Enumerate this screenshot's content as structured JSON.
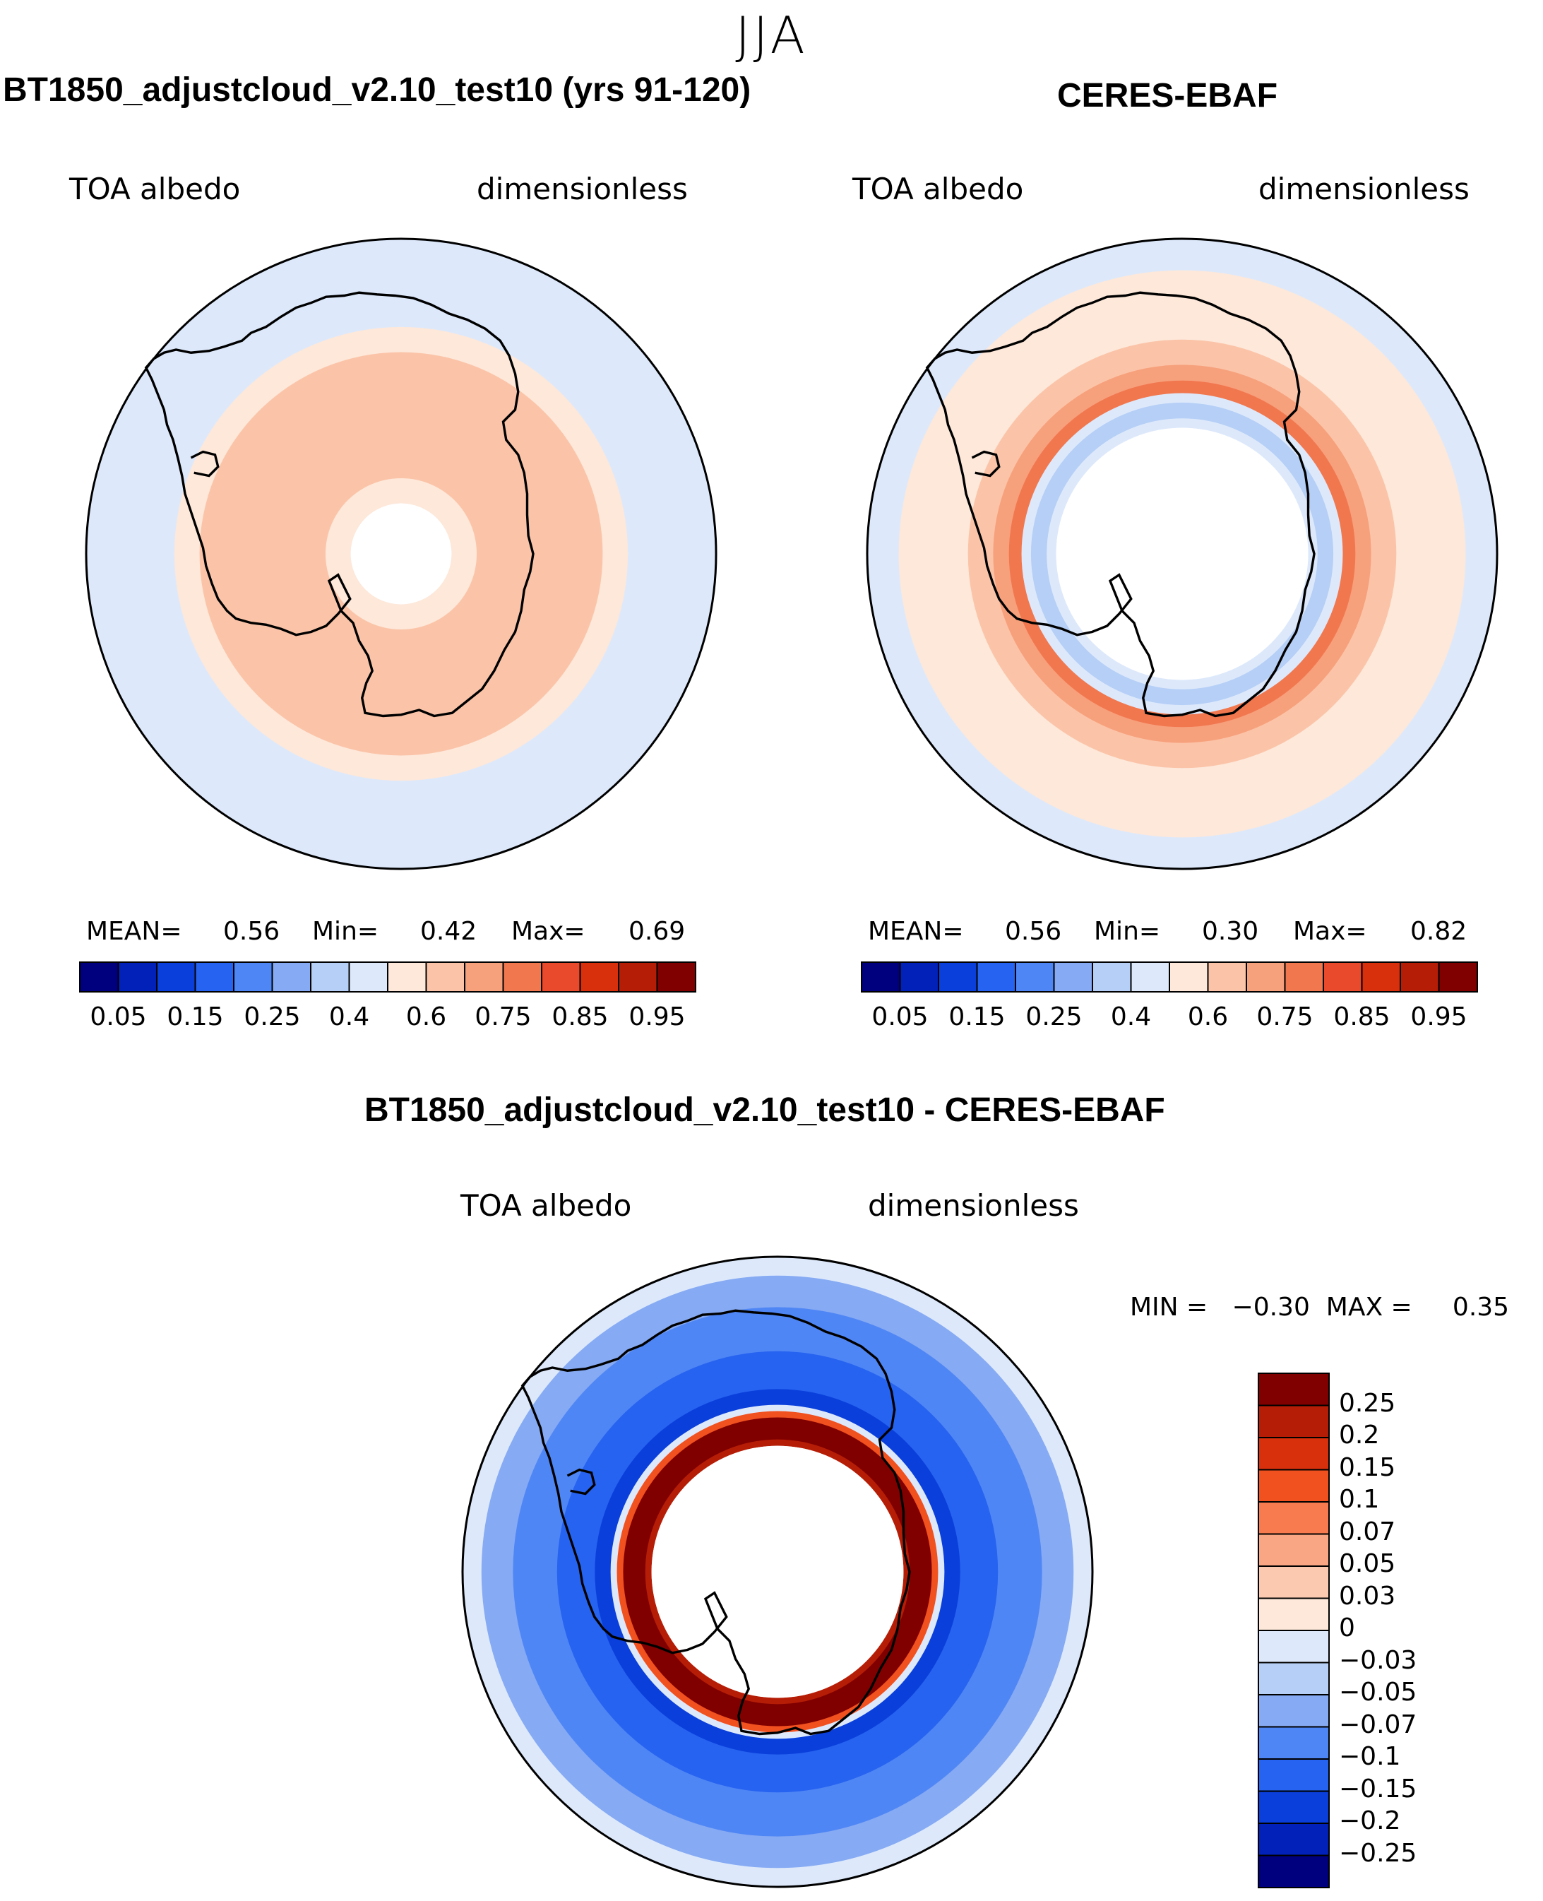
{
  "season": "JJA",
  "panels": {
    "model": {
      "title": "BT1850_adjustcloud_v2.10_test10 (yrs 91-120)",
      "variable": "TOA albedo",
      "units": "dimensionless",
      "stats": {
        "mean_label": "MEAN=",
        "mean": "0.56",
        "min_label": "Min=",
        "min": "0.42",
        "max_label": "Max=",
        "max": "0.69"
      }
    },
    "obs": {
      "title": "CERES-EBAF",
      "variable": "TOA albedo",
      "units": "dimensionless",
      "stats": {
        "mean_label": "MEAN=",
        "mean": "0.56",
        "min_label": "Min=",
        "min": "0.30",
        "max_label": "Max=",
        "max": "0.82"
      }
    },
    "diff": {
      "title": "BT1850_adjustcloud_v2.10_test10 - CERES-EBAF",
      "variable": "TOA albedo",
      "units": "dimensionless",
      "range_text": "MIN =   −0.30  MAX =     0.35"
    }
  },
  "colorbars": {
    "field": {
      "colors": [
        "#00007e",
        "#0121b8",
        "#0a3fdb",
        "#2663f0",
        "#4f86f5",
        "#86aaf3",
        "#b6cff6",
        "#dde9fb",
        "#fde8da",
        "#fbc4a8",
        "#f7a07c",
        "#f1774f",
        "#e84a2b",
        "#d8300d",
        "#b51d06",
        "#800000"
      ],
      "tick_labels": [
        "0.05",
        "0.15",
        "0.25",
        "0.4",
        "0.6",
        "0.75",
        "0.85",
        "0.95"
      ]
    },
    "diff": {
      "colors": [
        "#800000",
        "#b51d06",
        "#d8300d",
        "#f1501f",
        "#f77b4f",
        "#f9a684",
        "#fbc9b0",
        "#fde8da",
        "#dde9fb",
        "#b6cff6",
        "#86aaf3",
        "#4f86f5",
        "#2663f0",
        "#0a3fdb",
        "#0121b8",
        "#00007e"
      ],
      "tick_labels": [
        "0.25",
        "0.2",
        "0.15",
        "0.1",
        "0.07",
        "0.05",
        "0.03",
        "0",
        "−0.03",
        "−0.05",
        "−0.07",
        "−0.1",
        "−0.15",
        "−0.2",
        "−0.25"
      ]
    }
  },
  "chart_data": [
    {
      "type": "heatmap",
      "title": "BT1850_adjustcloud_v2.10_test10 (yrs 91-120)",
      "projection": "south polar stereographic",
      "variable": "TOA albedo",
      "units": "dimensionless",
      "mean": 0.56,
      "min": 0.42,
      "max": 0.69,
      "levels": [
        0.05,
        0.1,
        0.15,
        0.2,
        0.25,
        0.3,
        0.4,
        0.5,
        0.6,
        0.7,
        0.75,
        0.8,
        0.85,
        0.9,
        0.95
      ],
      "rings": [
        {
          "from_lat": -90,
          "to_lat": -82,
          "value": null
        },
        {
          "from_lat": -82,
          "to_lat": -78,
          "value": 0.55
        },
        {
          "from_lat": -78,
          "to_lat": -58,
          "value": 0.63
        },
        {
          "from_lat": -58,
          "to_lat": -54,
          "value": 0.56
        },
        {
          "from_lat": -54,
          "to_lat": -40,
          "value": 0.45
        }
      ]
    },
    {
      "type": "heatmap",
      "title": "CERES-EBAF",
      "projection": "south polar stereographic",
      "variable": "TOA albedo",
      "units": "dimensionless",
      "mean": 0.56,
      "min": 0.3,
      "max": 0.82,
      "levels": [
        0.05,
        0.1,
        0.15,
        0.2,
        0.25,
        0.3,
        0.4,
        0.5,
        0.6,
        0.7,
        0.75,
        0.8,
        0.85,
        0.9,
        0.95
      ],
      "rings": [
        {
          "from_lat": -90,
          "to_lat": -70,
          "value": null
        },
        {
          "from_lat": -70,
          "to_lat": -68.5,
          "value": 0.45
        },
        {
          "from_lat": -68.5,
          "to_lat": -66,
          "value": 0.35
        },
        {
          "from_lat": -66,
          "to_lat": -64.5,
          "value": 0.45
        },
        {
          "from_lat": -64.5,
          "to_lat": -62.5,
          "value": 0.78
        },
        {
          "from_lat": -62.5,
          "to_lat": -60,
          "value": 0.72
        },
        {
          "from_lat": -60,
          "to_lat": -56,
          "value": 0.65
        },
        {
          "from_lat": -56,
          "to_lat": -45,
          "value": 0.55
        },
        {
          "from_lat": -45,
          "to_lat": -40,
          "value": 0.45
        }
      ]
    },
    {
      "type": "heatmap",
      "title": "BT1850_adjustcloud_v2.10_test10 - CERES-EBAF",
      "projection": "south polar stereographic",
      "variable": "TOA albedo",
      "units": "dimensionless",
      "min": -0.3,
      "max": 0.35,
      "levels": [
        -0.25,
        -0.2,
        -0.15,
        -0.1,
        -0.07,
        -0.05,
        -0.03,
        0,
        0.03,
        0.05,
        0.07,
        0.1,
        0.15,
        0.2,
        0.25
      ],
      "rings": [
        {
          "from_lat": -90,
          "to_lat": -70,
          "value": null
        },
        {
          "from_lat": -70,
          "to_lat": -69,
          "value": 0.22
        },
        {
          "from_lat": -69,
          "to_lat": -65.5,
          "value": 0.27
        },
        {
          "from_lat": -65.5,
          "to_lat": -64.5,
          "value": 0.12
        },
        {
          "from_lat": -64.5,
          "to_lat": -63.5,
          "value": -0.02
        },
        {
          "from_lat": -63.5,
          "to_lat": -61,
          "value": -0.17
        },
        {
          "from_lat": -61,
          "to_lat": -55,
          "value": -0.12
        },
        {
          "from_lat": -55,
          "to_lat": -48,
          "value": -0.09
        },
        {
          "from_lat": -48,
          "to_lat": -43,
          "value": -0.06
        },
        {
          "from_lat": -43,
          "to_lat": -40,
          "value": -0.03
        }
      ]
    }
  ]
}
